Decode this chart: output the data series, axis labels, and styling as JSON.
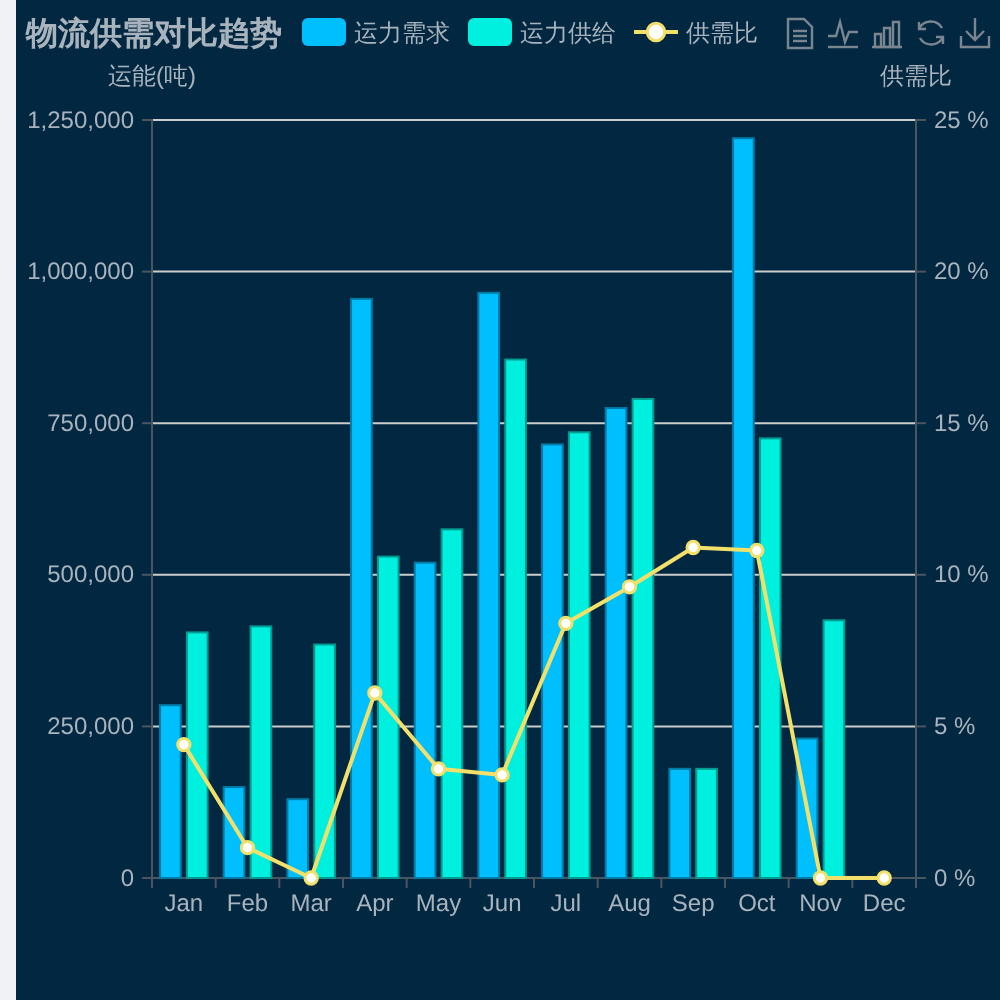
{
  "chart_data": {
    "type": "bar",
    "title": "物流供需对比趋势",
    "ylabel": "运能(吨)",
    "y2label": "供需比",
    "categories": [
      "Jan",
      "Feb",
      "Mar",
      "Apr",
      "May",
      "Jun",
      "Jul",
      "Aug",
      "Sep",
      "Oct",
      "Nov",
      "Dec"
    ],
    "series": [
      {
        "name": "运力需求",
        "color": "#00bfff",
        "values": [
          285000,
          150000,
          130000,
          955000,
          520000,
          965000,
          715000,
          775000,
          180000,
          1220000,
          230000,
          null
        ]
      },
      {
        "name": "运力供给",
        "color": "#00f0e0",
        "values": [
          405000,
          415000,
          385000,
          530000,
          575000,
          855000,
          735000,
          790000,
          180000,
          725000,
          425000,
          null
        ]
      },
      {
        "name": "供需比",
        "type": "line",
        "axis": "y2",
        "color": "#f3e06a",
        "values": [
          4.4,
          1.0,
          0,
          6.1,
          3.6,
          3.4,
          8.4,
          9.6,
          10.9,
          10.8,
          0,
          0
        ]
      }
    ],
    "ylim": [
      0,
      1250000
    ],
    "yticks": [
      0,
      {
        "value": 250000,
        "label": "250,000"
      },
      {
        "value": 500000,
        "label": "500,000"
      },
      {
        "value": 750000,
        "label": "750,000"
      },
      {
        "value": 1000000,
        "label": "1,000,000"
      },
      {
        "value": 1250000,
        "label": "1,250,000"
      }
    ],
    "y2lim": [
      0,
      25
    ],
    "y2ticks": [
      {
        "value": 0,
        "label": "0 %"
      },
      {
        "value": 5,
        "label": "5 %"
      },
      {
        "value": 10,
        "label": "10 %"
      },
      {
        "value": 15,
        "label": "15 %"
      },
      {
        "value": 20,
        "label": "20 %"
      },
      {
        "value": 25,
        "label": "25 %"
      }
    ],
    "grid": "y",
    "legend": "top",
    "marker": "circle"
  }
}
